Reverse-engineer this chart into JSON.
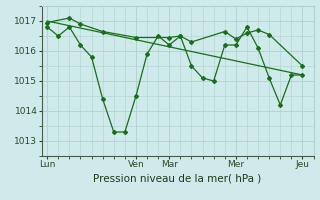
{
  "bg_color": "#ceeaea",
  "line_color": "#1a6e1a",
  "grid_color": "#b0d0d0",
  "xlabel": "Pression niveau de la mer( hPa )",
  "ylim": [
    1012.5,
    1017.5
  ],
  "yticks": [
    1013,
    1014,
    1015,
    1016,
    1017
  ],
  "xtick_labels": [
    "Lun",
    "Ven",
    "Mar",
    "Mer",
    "Jeu"
  ],
  "xtick_positions": [
    0,
    8,
    11,
    17,
    23
  ],
  "xlim": [
    -0.5,
    24
  ],
  "series1_x": [
    0,
    1,
    2,
    3,
    4,
    5,
    6,
    7,
    8,
    9,
    10,
    11,
    12,
    13,
    14,
    15,
    16,
    17,
    18,
    19,
    20,
    21,
    22,
    23
  ],
  "series1_y": [
    1016.8,
    1016.5,
    1016.8,
    1016.2,
    1015.8,
    1014.4,
    1013.3,
    1013.3,
    1014.5,
    1015.9,
    1016.5,
    1016.2,
    1016.5,
    1015.5,
    1015.1,
    1015.0,
    1016.2,
    1016.2,
    1016.8,
    1016.1,
    1015.1,
    1014.2,
    1015.2,
    1015.2
  ],
  "series2_x": [
    0,
    2,
    3,
    5,
    8,
    11,
    12,
    13,
    16,
    17,
    18,
    19,
    20,
    23
  ],
  "series2_y": [
    1016.95,
    1017.1,
    1016.9,
    1016.65,
    1016.45,
    1016.45,
    1016.5,
    1016.3,
    1016.65,
    1016.4,
    1016.6,
    1016.7,
    1016.55,
    1015.5
  ],
  "trend_x": [
    0,
    23
  ],
  "trend_y": [
    1017.0,
    1015.2
  ]
}
